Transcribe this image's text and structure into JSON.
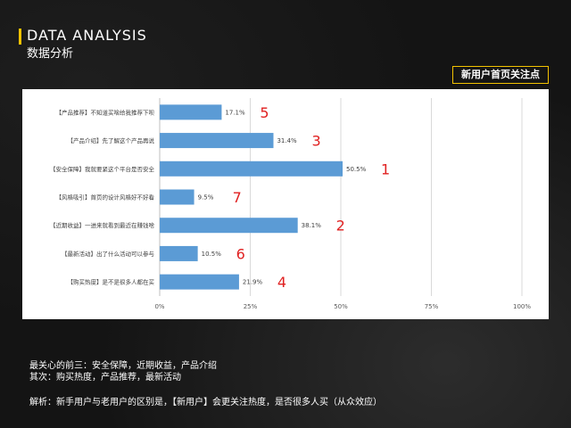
{
  "header": {
    "title_en": "DATA ANALYSIS",
    "title_cn": "数据分析",
    "badge": "新用户首页关注点"
  },
  "chart_data": {
    "type": "bar",
    "orientation": "horizontal",
    "categories": [
      "【产品推荐】不知道买啥给我推荐下呗",
      "【产品介绍】先了解这个产品再说",
      "【安全保障】我就要紧这个平台是否安全",
      "【风格吸引】首页的设计风格好不好看",
      "【近期收益】一进来就看到最近在赚钱啥",
      "【最新活动】出了什么活动可以参与",
      "【购买热度】是不是很多人都在买"
    ],
    "values": [
      17.1,
      31.4,
      50.5,
      9.5,
      38.1,
      10.5,
      21.9
    ],
    "value_labels": [
      "17.1%",
      "31.4%",
      "50.5%",
      "9.5%",
      "38.1%",
      "10.5%",
      "21.9%"
    ],
    "ranks": [
      "5",
      "3",
      "1",
      "7",
      "2",
      "6",
      "4"
    ],
    "xlim": [
      0,
      100
    ],
    "x_ticks": [
      "0%",
      "25%",
      "50%",
      "75%",
      "100%"
    ],
    "grid": true,
    "bar_color": "#5b9bd5",
    "rank_color": "#e02020"
  },
  "notes": {
    "line1": "最关心的前三：安全保障，近期收益，产品介绍",
    "line2": "其次：购买热度，产品推荐，最新活动"
  },
  "analysis": "解析：新手用户与老用户的区别是，【新用户】会更关注热度，是否很多人买（从众效应）"
}
